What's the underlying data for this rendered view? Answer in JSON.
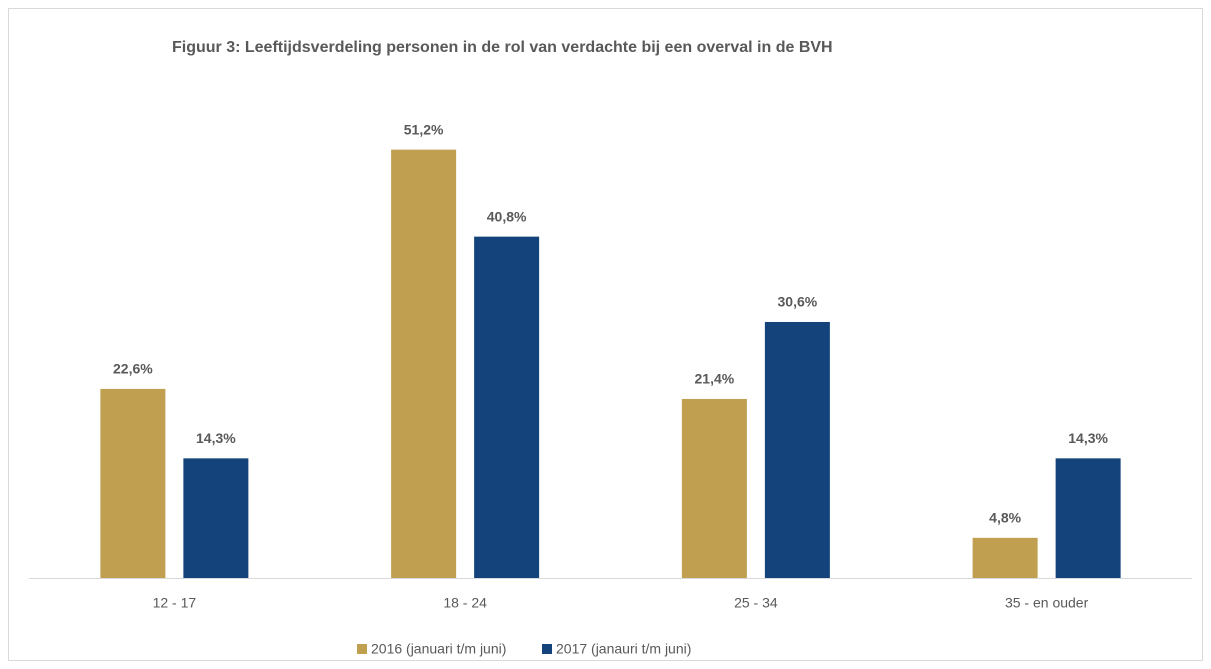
{
  "chart_data": {
    "type": "bar",
    "title": "Figuur 3: Leeftijdsverdeling personen in de rol van verdachte bij een overval in de BVH",
    "categories": [
      "12 - 17",
      "18 - 24",
      "25 - 34",
      "35 - en ouder"
    ],
    "series": [
      {
        "name": "2016 (januari t/m juni)",
        "color": "#c09f50",
        "values": [
          22.6,
          51.2,
          21.4,
          4.8
        ],
        "value_labels": [
          "22,6%",
          "51,2%",
          "21,4%",
          "4,8%"
        ]
      },
      {
        "name": "2017 (janauri t/m juni)",
        "color": "#14437c",
        "values": [
          14.3,
          40.8,
          30.6,
          14.3
        ],
        "value_labels": [
          "14,3%",
          "40,8%",
          "30,6%",
          "14,3%"
        ]
      }
    ],
    "ylim": [
      0,
      60
    ],
    "legend": "bottom"
  }
}
